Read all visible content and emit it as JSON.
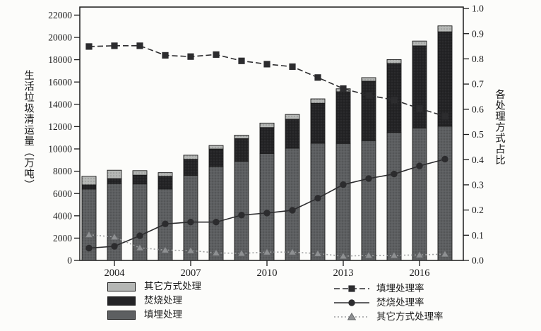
{
  "figure": {
    "title": "",
    "background": "#fcfcfa",
    "frame_color": "#1b1b1b"
  },
  "chart_data": {
    "type": "bar",
    "combo": "stacked bars + 3 rate lines on secondary axis",
    "x": [
      2003,
      2004,
      2005,
      2006,
      2007,
      2008,
      2009,
      2010,
      2011,
      2012,
      2013,
      2014,
      2015,
      2016,
      2017
    ],
    "x_tick_labels": [
      "2004",
      "2007",
      "2010",
      "2013",
      "2016"
    ],
    "left_axis": {
      "label": "生活垃圾清运量（万吨）",
      "min": 0,
      "max": 22000,
      "step": 2000
    },
    "right_axis": {
      "label": "各处理方式占比",
      "min": 0.0,
      "max": 1.0,
      "step": 0.1
    },
    "grid": "off",
    "bar_series": [
      {
        "name": "填埋处理",
        "color": "#5d5f61",
        "values": [
          6404,
          6889,
          6858,
          6408,
          7633,
          8424,
          8899,
          9598,
          10064,
          10513,
          10493,
          10744,
          11483,
          11866,
          12038
        ]
      },
      {
        "name": "焚烧处理",
        "color": "#242426",
        "values": [
          370,
          449,
          792,
          1138,
          1435,
          1570,
          2022,
          2317,
          2599,
          3584,
          4634,
          5330,
          6176,
          7378,
          8463
        ]
      },
      {
        "name": "其它方式处理",
        "color": "#b4b6b4",
        "values": [
          771,
          751,
          401,
          326,
          370,
          313,
          311,
          403,
          427,
          393,
          267,
          320,
          354,
          429,
          533
        ]
      }
    ],
    "line_series": [
      {
        "name": "填埋处理率",
        "marker": "square",
        "color": "#2c2c2e",
        "marker_fill": "#2c2c2e",
        "dash": "8 4",
        "values": [
          0.849,
          0.852,
          0.852,
          0.814,
          0.809,
          0.817,
          0.792,
          0.779,
          0.769,
          0.726,
          0.682,
          0.655,
          0.637,
          0.603,
          0.572
        ]
      },
      {
        "name": "焚烧处理率",
        "marker": "circle",
        "color": "#2c2c2e",
        "marker_fill": "#2c2c2e",
        "dash": "",
        "values": [
          0.049,
          0.056,
          0.098,
          0.145,
          0.152,
          0.152,
          0.18,
          0.188,
          0.199,
          0.247,
          0.301,
          0.325,
          0.343,
          0.375,
          0.402
        ]
      },
      {
        "name": "其它方式处理率",
        "marker": "triangle",
        "color": "#9b9d9e",
        "marker_fill": "#8e9092",
        "dash": "2 3",
        "values": [
          0.102,
          0.093,
          0.05,
          0.041,
          0.039,
          0.03,
          0.028,
          0.033,
          0.033,
          0.027,
          0.017,
          0.02,
          0.02,
          0.022,
          0.025
        ]
      }
    ],
    "legend_position": "bottom"
  },
  "legend": {
    "bars_order": [
      "其它方式处理",
      "焚烧处理",
      "填埋处理"
    ],
    "lines_order": [
      "填埋处理率",
      "焚烧处理率",
      "其它方式处理率"
    ]
  }
}
